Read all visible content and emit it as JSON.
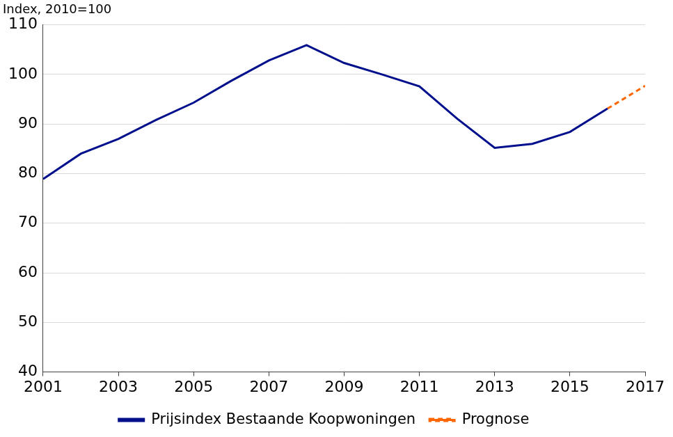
{
  "chart_data": {
    "type": "line",
    "ylabel": "Index, 2010=100",
    "x": [
      2001,
      2002,
      2003,
      2004,
      2005,
      2006,
      2007,
      2008,
      2009,
      2010,
      2011,
      2012,
      2013,
      2014,
      2015,
      2016,
      2017
    ],
    "series": [
      {
        "name": "Prijsindex Bestaande Koopwoningen",
        "color": "#000f8c",
        "line_style": "solid",
        "values": [
          78.9,
          84.0,
          87.0,
          90.8,
          94.3,
          98.7,
          102.8,
          105.9,
          102.3,
          100.0,
          97.6,
          91.1,
          85.2,
          86.0,
          88.4,
          93.1,
          null
        ]
      },
      {
        "name": "Prognose",
        "color": "#ff6600",
        "line_style": "dashed",
        "values": [
          null,
          null,
          null,
          null,
          null,
          null,
          null,
          null,
          null,
          null,
          null,
          null,
          null,
          null,
          null,
          93.1,
          97.7
        ]
      }
    ],
    "xlim": [
      2001,
      2017
    ],
    "xticks": [
      2001,
      2003,
      2005,
      2007,
      2009,
      2011,
      2013,
      2015,
      2017
    ],
    "ylim": [
      40,
      110
    ],
    "yticks": [
      40,
      50,
      60,
      70,
      80,
      90,
      100,
      110
    ],
    "grid": true,
    "legend": "bottom"
  }
}
